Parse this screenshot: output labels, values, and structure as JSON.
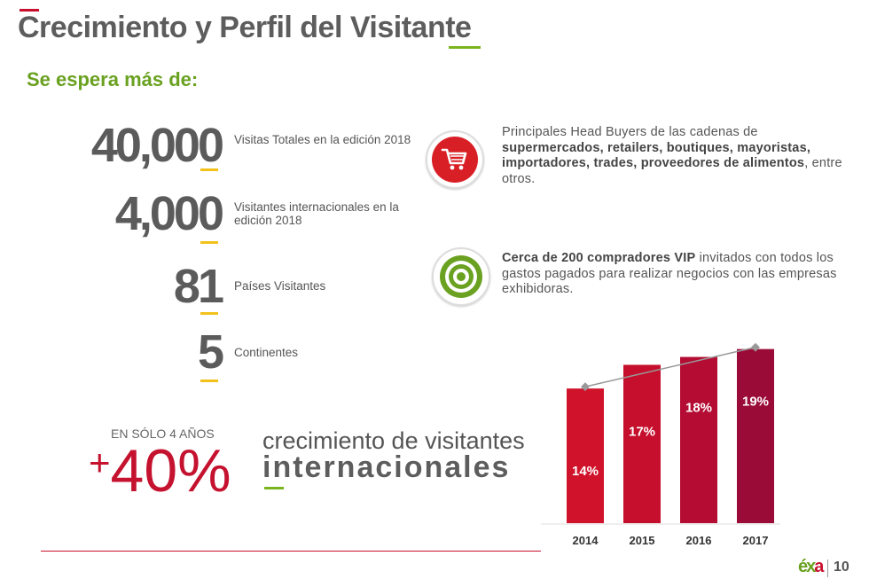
{
  "header": {
    "title": "Crecimiento y Perfil del Visitante",
    "subtitle": "Se espera más de:"
  },
  "stats": [
    {
      "value": "40,000",
      "label": "Visitas Totales en la edición 2018"
    },
    {
      "value": "4,000",
      "label": "Visitantes internacionales en la edición 2018"
    },
    {
      "value": "81",
      "label": "Países Visitantes"
    },
    {
      "value": "5",
      "label": "Continentes"
    }
  ],
  "info": [
    {
      "icon": "shopping-cart-icon",
      "pre": "Principales Head Buyers de las cadenas de ",
      "bold": "supermercados, retailers, boutiques, mayoristas, importadores, trades, proveedores de alimentos",
      "post": ", entre otros."
    },
    {
      "icon": "target-icon",
      "pre": "",
      "bold": "Cerca de 200 compradores VIP",
      "post": " invitados con todos los gastos pagados para realizar negocios con las empresas exhibidoras."
    }
  ],
  "growth": {
    "caption": "EN SÓLO 4 AÑOS",
    "plus": "+",
    "value": "40%",
    "line1": "crecimiento de visitantes",
    "line2": "internacionales"
  },
  "chart_data": {
    "type": "bar",
    "categories": [
      "2014",
      "2015",
      "2016",
      "2017"
    ],
    "values": [
      14,
      17,
      18,
      19
    ],
    "labels": [
      "14%",
      "17%",
      "18%",
      "19%"
    ],
    "trend_line": true,
    "colors": [
      "#d0122b",
      "#c50f2c",
      "#b40c33",
      "#9b0b38"
    ]
  },
  "logo": {
    "mark_a": "éx",
    "mark_b": "a",
    "years": "10"
  }
}
